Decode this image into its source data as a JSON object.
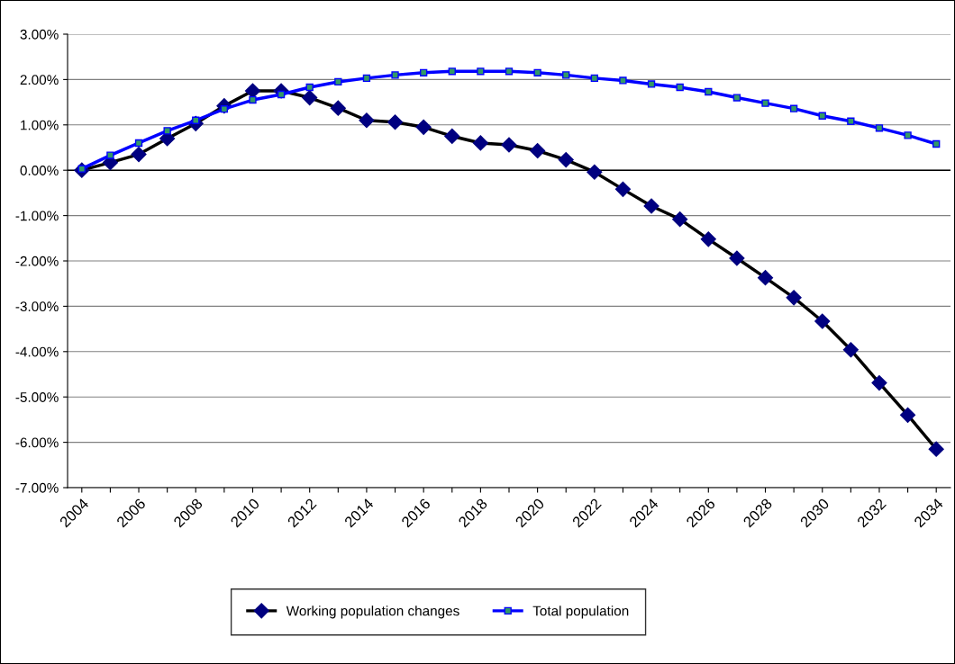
{
  "chart_data": {
    "type": "line",
    "categories": [
      "2004",
      null,
      "2006",
      null,
      "2008",
      null,
      "2010",
      null,
      "2012",
      null,
      "2014",
      null,
      "2016",
      null,
      "2018",
      null,
      "2020",
      null,
      "2022",
      null,
      "2024",
      null,
      "2026",
      null,
      "2028",
      null,
      "2030",
      null,
      "2032",
      null,
      "2034"
    ],
    "series": [
      {
        "name": "Working population changes",
        "color": "#000000",
        "marker": "diamond",
        "values": [
          0.0,
          0.17,
          0.35,
          0.7,
          1.03,
          1.42,
          1.75,
          1.75,
          1.6,
          1.37,
          1.1,
          1.06,
          0.95,
          0.75,
          0.6,
          0.56,
          0.43,
          0.23,
          -0.04,
          -0.42,
          -0.79,
          -1.08,
          -1.52,
          -1.94,
          -2.37,
          -2.81,
          -3.33,
          -3.96,
          -4.69,
          -5.4,
          -6.15
        ]
      },
      {
        "name": "Total population",
        "color": "#0000ff",
        "marker": "square",
        "values": [
          0.03,
          0.33,
          0.6,
          0.87,
          1.1,
          1.35,
          1.55,
          1.67,
          1.83,
          1.95,
          2.03,
          2.1,
          2.15,
          2.18,
          2.18,
          2.18,
          2.15,
          2.1,
          2.03,
          1.98,
          1.9,
          1.83,
          1.73,
          1.6,
          1.48,
          1.36,
          1.2,
          1.08,
          0.93,
          0.77,
          0.58
        ]
      }
    ],
    "ylim": [
      -7,
      3
    ],
    "yticks": [
      {
        "value": 3,
        "label": "3.00%"
      },
      {
        "value": 2,
        "label": "2.00%"
      },
      {
        "value": 1,
        "label": "1.00%"
      },
      {
        "value": 0,
        "label": "0.00%"
      },
      {
        "value": -1,
        "label": "-1.00%"
      },
      {
        "value": -2,
        "label": "-2.00%"
      },
      {
        "value": -3,
        "label": "-3.00%"
      },
      {
        "value": -4,
        "label": "-4.00%"
      },
      {
        "value": -5,
        "label": "-5.00%"
      },
      {
        "value": -6,
        "label": "-6.00%"
      },
      {
        "value": -7,
        "label": "-7.00%"
      }
    ],
    "grid": "y",
    "legend": "bottom"
  }
}
